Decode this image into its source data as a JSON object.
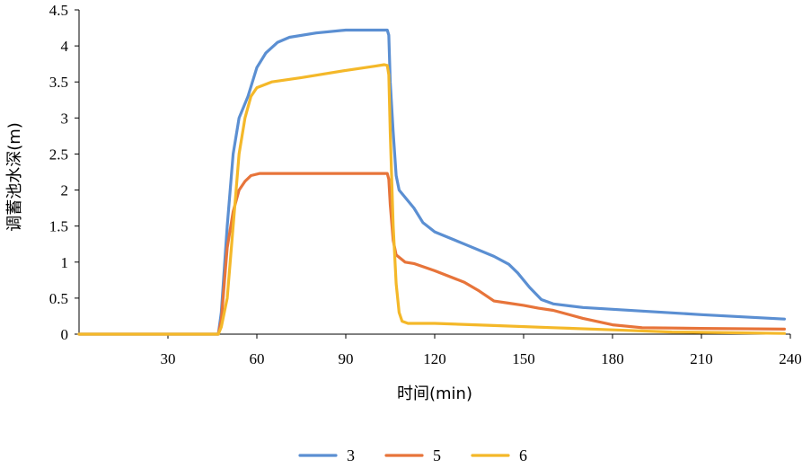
{
  "chart_data": {
    "type": "line",
    "title": "",
    "xlabel": "时间(min)",
    "ylabel": "调蓄池水深(m)",
    "xlim": [
      0,
      240
    ],
    "ylim": [
      0,
      4.5
    ],
    "xticks": [
      30,
      60,
      90,
      120,
      150,
      180,
      210,
      240
    ],
    "yticks": [
      0,
      0.5,
      1,
      1.5,
      2,
      2.5,
      3,
      3.5,
      4,
      4.5
    ],
    "ytick_labels": [
      "0",
      "0.5",
      "1",
      "1.5",
      "2",
      "2.5",
      "3",
      "3.5",
      "4",
      "4.5"
    ],
    "grid": false,
    "legend_position": "bottom",
    "series": [
      {
        "name": "3",
        "color": "#5B8FD2",
        "points": [
          [
            0,
            0
          ],
          [
            47,
            0
          ],
          [
            48,
            0.3
          ],
          [
            50,
            1.5
          ],
          [
            52,
            2.5
          ],
          [
            54,
            3.0
          ],
          [
            57,
            3.3
          ],
          [
            60,
            3.7
          ],
          [
            63,
            3.9
          ],
          [
            67,
            4.05
          ],
          [
            71,
            4.12
          ],
          [
            80,
            4.18
          ],
          [
            90,
            4.22
          ],
          [
            100,
            4.22
          ],
          [
            104,
            4.22
          ],
          [
            104.5,
            4.15
          ],
          [
            105,
            3.5
          ],
          [
            106,
            2.8
          ],
          [
            107,
            2.2
          ],
          [
            108,
            2.0
          ],
          [
            110,
            1.9
          ],
          [
            113,
            1.75
          ],
          [
            116,
            1.55
          ],
          [
            120,
            1.42
          ],
          [
            130,
            1.25
          ],
          [
            140,
            1.08
          ],
          [
            145,
            0.97
          ],
          [
            148,
            0.85
          ],
          [
            152,
            0.65
          ],
          [
            156,
            0.48
          ],
          [
            160,
            0.42
          ],
          [
            170,
            0.37
          ],
          [
            190,
            0.32
          ],
          [
            210,
            0.27
          ],
          [
            238,
            0.21
          ]
        ]
      },
      {
        "name": "5",
        "color": "#E7743A",
        "points": [
          [
            0,
            0
          ],
          [
            47,
            0
          ],
          [
            48,
            0.2
          ],
          [
            50,
            1.2
          ],
          [
            52,
            1.7
          ],
          [
            54,
            2.0
          ],
          [
            56,
            2.12
          ],
          [
            58,
            2.2
          ],
          [
            61,
            2.23
          ],
          [
            70,
            2.23
          ],
          [
            90,
            2.23
          ],
          [
            104,
            2.23
          ],
          [
            104.5,
            2.15
          ],
          [
            105,
            1.8
          ],
          [
            106,
            1.3
          ],
          [
            107,
            1.1
          ],
          [
            110,
            1.0
          ],
          [
            113,
            0.98
          ],
          [
            120,
            0.88
          ],
          [
            130,
            0.72
          ],
          [
            135,
            0.6
          ],
          [
            140,
            0.46
          ],
          [
            145,
            0.43
          ],
          [
            150,
            0.4
          ],
          [
            155,
            0.36
          ],
          [
            160,
            0.33
          ],
          [
            170,
            0.22
          ],
          [
            180,
            0.13
          ],
          [
            190,
            0.09
          ],
          [
            210,
            0.08
          ],
          [
            238,
            0.07
          ]
        ]
      },
      {
        "name": "6",
        "color": "#F4B829",
        "points": [
          [
            0,
            0
          ],
          [
            47,
            0
          ],
          [
            48,
            0.1
          ],
          [
            50,
            0.5
          ],
          [
            52,
            1.5
          ],
          [
            54,
            2.5
          ],
          [
            56,
            3.0
          ],
          [
            58,
            3.3
          ],
          [
            60,
            3.42
          ],
          [
            65,
            3.5
          ],
          [
            75,
            3.56
          ],
          [
            90,
            3.66
          ],
          [
            100,
            3.72
          ],
          [
            103,
            3.74
          ],
          [
            104,
            3.73
          ],
          [
            104.5,
            3.6
          ],
          [
            105,
            2.8
          ],
          [
            106,
            1.5
          ],
          [
            107,
            0.7
          ],
          [
            108,
            0.3
          ],
          [
            109,
            0.18
          ],
          [
            111,
            0.15
          ],
          [
            120,
            0.15
          ],
          [
            140,
            0.12
          ],
          [
            160,
            0.09
          ],
          [
            180,
            0.06
          ],
          [
            200,
            0.03
          ],
          [
            220,
            0.02
          ],
          [
            238,
            0.01
          ]
        ]
      }
    ]
  }
}
